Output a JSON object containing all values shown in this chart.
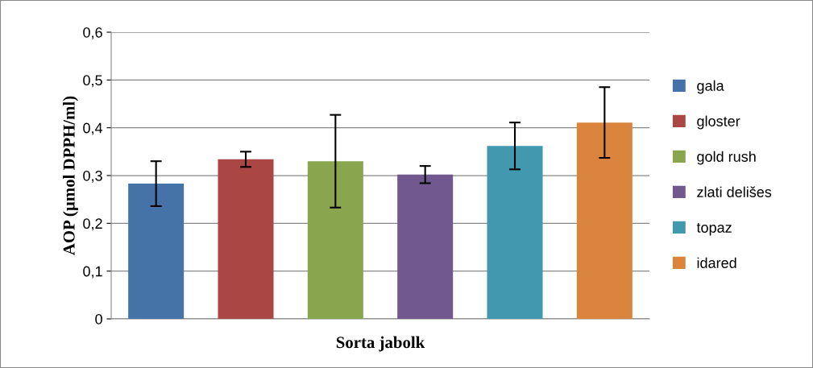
{
  "chart_data": {
    "type": "bar",
    "xlabel": "Sorta jabolk",
    "ylabel": "AOP (µmol DPPH/ml)",
    "categories": [
      null,
      null,
      null,
      null,
      null,
      null
    ],
    "series": [
      {
        "name": "gala",
        "color": "#4572a7",
        "values": [
          0.283,
          null,
          null,
          null,
          null,
          null
        ],
        "errors": [
          0.047,
          null,
          null,
          null,
          null,
          null
        ]
      },
      {
        "name": "gloster",
        "color": "#aa4643",
        "values": [
          null,
          0.334,
          null,
          null,
          null,
          null
        ],
        "errors": [
          null,
          0.016,
          null,
          null,
          null,
          null
        ]
      },
      {
        "name": "gold rush",
        "color": "#89a54e",
        "values": [
          null,
          null,
          0.33,
          null,
          null,
          null
        ],
        "errors": [
          null,
          null,
          0.097,
          null,
          null,
          null
        ]
      },
      {
        "name": "zlati delišes",
        "color": "#71588f",
        "values": [
          null,
          null,
          null,
          0.302,
          null,
          null
        ],
        "errors": [
          null,
          null,
          null,
          0.018,
          null,
          null
        ]
      },
      {
        "name": "topaz",
        "color": "#4198af",
        "values": [
          null,
          null,
          null,
          null,
          0.362,
          null
        ],
        "errors": [
          null,
          null,
          null,
          null,
          0.049,
          null
        ]
      },
      {
        "name": "idared",
        "color": "#db843d",
        "values": [
          null,
          null,
          null,
          null,
          null,
          0.411
        ],
        "errors": [
          null,
          null,
          null,
          null,
          null,
          0.074
        ]
      }
    ],
    "ylim": [
      0,
      0.6
    ],
    "yticks": [
      0,
      {
        "value": 0.1,
        "label": "0,1"
      },
      {
        "value": 0.2,
        "label": "0,2"
      },
      {
        "value": 0.3,
        "label": "0,3"
      },
      {
        "value": 0.4,
        "label": "0,4"
      },
      {
        "value": 0.5,
        "label": "0,5"
      },
      {
        "value": 0.6,
        "label": "0,6"
      }
    ],
    "grid": "y",
    "legend": "right"
  }
}
